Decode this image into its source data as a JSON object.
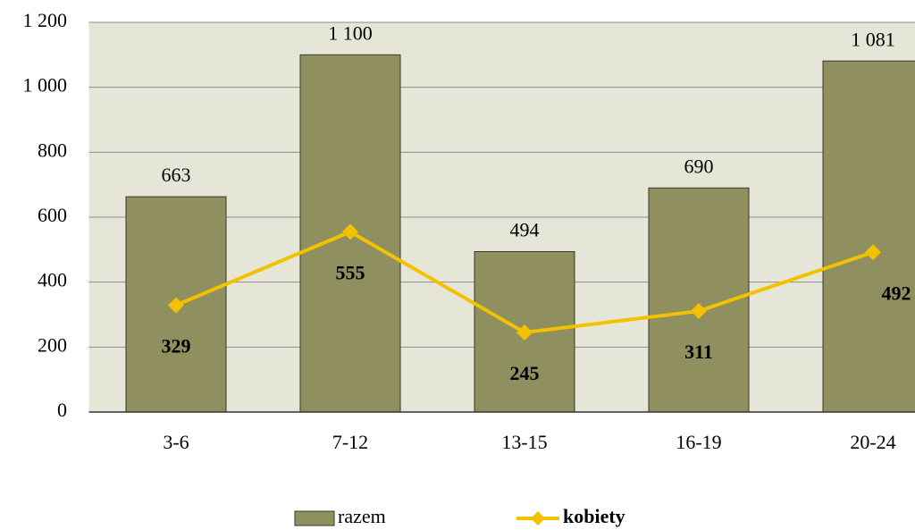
{
  "chart_data": {
    "type": "bar",
    "categories": [
      "3-6",
      "7-12",
      "13-15",
      "16-19",
      "20-24"
    ],
    "series": [
      {
        "name": "razem",
        "type": "bar",
        "color": "#8f8f60",
        "values": [
          663,
          1100,
          494,
          690,
          1081
        ],
        "value_labels": [
          "663",
          "1 100",
          "494",
          "690",
          "1 081"
        ]
      },
      {
        "name": "kobiety",
        "type": "line",
        "color": "#f2c200",
        "values": [
          329,
          555,
          245,
          311,
          492
        ]
      }
    ],
    "ylim": [
      0,
      1200
    ],
    "yticks": [
      0,
      200,
      400,
      600,
      800,
      {
        "value": 1000,
        "label": "1 000"
      },
      {
        "value": 1200,
        "label": "1 200"
      }
    ],
    "grid": true,
    "legend": "bottom"
  }
}
